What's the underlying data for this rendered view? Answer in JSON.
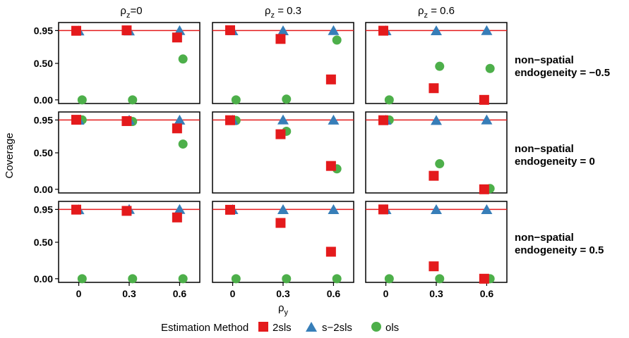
{
  "chart_data": {
    "type": "scatter",
    "facet_columns": [
      {
        "label_main": "ρ",
        "label_sub": "z",
        "label_rest": "=0"
      },
      {
        "label_main": "ρ",
        "label_sub": "z",
        "label_rest": " = 0.3"
      },
      {
        "label_main": "ρ",
        "label_sub": "z",
        "label_rest": " = 0.6"
      }
    ],
    "facet_rows": [
      {
        "line1": "non−spatial",
        "line2": "endogeneity = −0.5"
      },
      {
        "line1": "non−spatial",
        "line2": "endogeneity = 0"
      },
      {
        "line1": "non−spatial",
        "line2": "endogeneity = 0.5"
      }
    ],
    "xlabel_main": "ρ",
    "xlabel_sub": "y",
    "ylabel": "Coverage",
    "x_ticks": [
      "0",
      "0.3",
      "0.6"
    ],
    "y_ticks": [
      "0.00",
      "0.50",
      "0.95"
    ],
    "x_tick_values": [
      0,
      0.3,
      0.6
    ],
    "y_tick_values": [
      0,
      0.5,
      0.95
    ],
    "xlim": [
      -0.12,
      0.72
    ],
    "ylim": [
      -0.05,
      1.06
    ],
    "reference_line": 0.95,
    "reference_color": "#E41A1C",
    "legend": {
      "title": "Estimation Method",
      "position": "bottom",
      "entries": [
        {
          "name": "2sls",
          "shape": "square",
          "color": "#E41A1C"
        },
        {
          "name": "s−2sls",
          "shape": "triangle",
          "color": "#377EB8"
        },
        {
          "name": "ols",
          "shape": "circle",
          "color": "#4DAF4A"
        }
      ]
    },
    "panels": [
      {
        "row": 0,
        "col": 0,
        "series": {
          "2sls": [
            0.947,
            0.953,
            0.855
          ],
          "s-2sls": [
            0.942,
            0.942,
            0.947
          ],
          "ols": [
            0.0,
            0.0,
            0.56
          ]
        }
      },
      {
        "row": 0,
        "col": 1,
        "series": {
          "2sls": [
            0.955,
            0.835,
            0.28
          ],
          "s-2sls": [
            0.944,
            0.944,
            0.947
          ],
          "ols": [
            0.0,
            0.01,
            0.82
          ]
        }
      },
      {
        "row": 0,
        "col": 2,
        "series": {
          "2sls": [
            0.948,
            0.16,
            0.0
          ],
          "s-2sls": [
            0.944,
            0.944,
            0.947
          ],
          "ols": [
            0.0,
            0.46,
            0.43
          ]
        }
      },
      {
        "row": 1,
        "col": 0,
        "series": {
          "2sls": [
            0.953,
            0.935,
            0.835
          ],
          "s-2sls": [
            0.944,
            0.944,
            0.945
          ],
          "ols": [
            0.952,
            0.93,
            0.62
          ]
        }
      },
      {
        "row": 1,
        "col": 1,
        "series": {
          "2sls": [
            0.947,
            0.755,
            0.32
          ],
          "s-2sls": [
            0.944,
            0.948,
            0.945
          ],
          "ols": [
            0.943,
            0.795,
            0.28
          ]
        }
      },
      {
        "row": 1,
        "col": 2,
        "series": {
          "2sls": [
            0.947,
            0.185,
            0.0
          ],
          "s-2sls": [
            0.944,
            0.94,
            0.948
          ],
          "ols": [
            0.95,
            0.35,
            0.01
          ]
        }
      },
      {
        "row": 2,
        "col": 0,
        "series": {
          "2sls": [
            0.947,
            0.93,
            0.84
          ],
          "s-2sls": [
            0.943,
            0.946,
            0.946
          ],
          "ols": [
            0.0,
            0.0,
            0.0
          ]
        }
      },
      {
        "row": 2,
        "col": 1,
        "series": {
          "2sls": [
            0.945,
            0.765,
            0.37
          ],
          "s-2sls": [
            0.944,
            0.944,
            0.944
          ],
          "ols": [
            0.0,
            0.0,
            0.0
          ]
        }
      },
      {
        "row": 2,
        "col": 2,
        "series": {
          "2sls": [
            0.95,
            0.17,
            0.0
          ],
          "s-2sls": [
            0.944,
            0.944,
            0.944
          ],
          "ols": [
            0.0,
            0.0,
            0.0
          ]
        }
      }
    ]
  }
}
